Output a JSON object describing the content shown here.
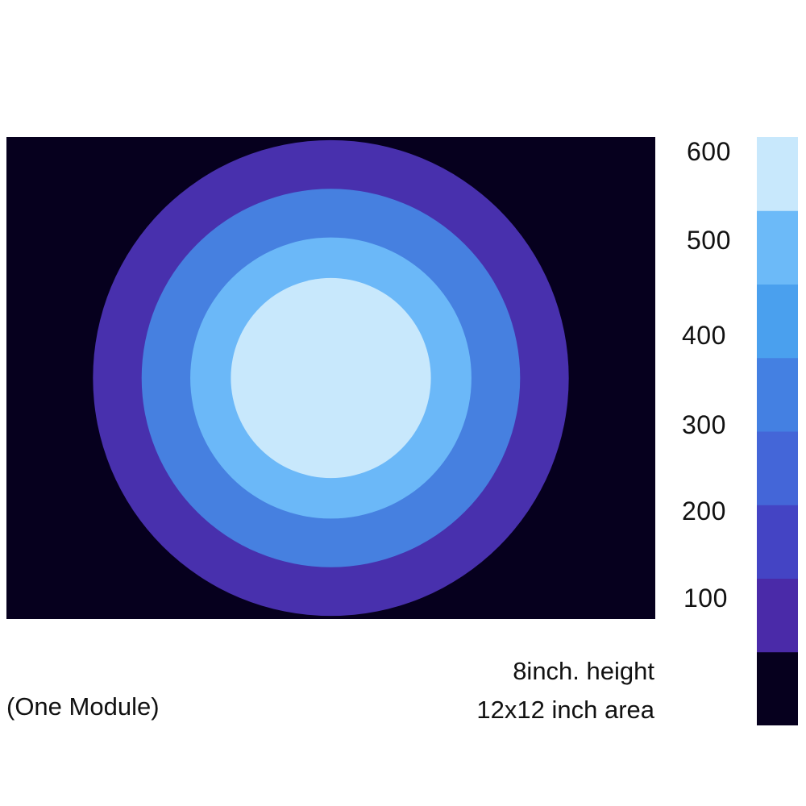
{
  "chart_data": {
    "type": "heatmap",
    "description_type": "radial intensity contour map",
    "levels": [
      0,
      100,
      200,
      300,
      400,
      500,
      600
    ],
    "contour_rings": [
      {
        "level_min": 0,
        "color": "#06001e"
      },
      {
        "level_min": 100,
        "color": "#4830ad"
      },
      {
        "level_min": 300,
        "color": "#4680e0"
      },
      {
        "level_min": 400,
        "color": "#6bb8f8"
      },
      {
        "level_min": 500,
        "color": "#c8e8fc"
      }
    ],
    "ring_radii_inches": [
      4.4,
      3.5,
      2.6,
      1.85
    ],
    "center_inches": [
      6,
      4.45
    ],
    "area_inches": [
      12,
      8.9
    ],
    "colorbar": {
      "bands": [
        "#06001e",
        "#4a2aa8",
        "#4444c4",
        "#4466d8",
        "#4480e2",
        "#4aa0ee",
        "#6cbaf8",
        "#c8e8fc"
      ],
      "ticks": [
        "100",
        "200",
        "300",
        "400",
        "500",
        "600"
      ]
    }
  },
  "notes": {
    "line1": "8inch. height",
    "line2": "12x12 inch area",
    "module": "(One Module)"
  }
}
